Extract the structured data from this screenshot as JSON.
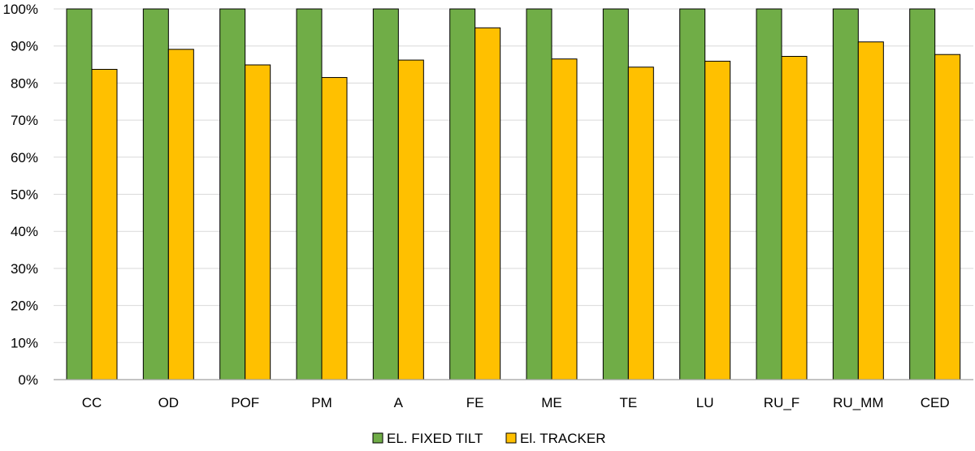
{
  "chart_data": {
    "type": "bar",
    "title": "",
    "xlabel": "",
    "ylabel": "",
    "categories": [
      "CC",
      "OD",
      "POF",
      "PM",
      "A",
      "FE",
      "ME",
      "TE",
      "LU",
      "RU_F",
      "RU_MM",
      "CED"
    ],
    "series": [
      {
        "name": "EL. FIXED TILT",
        "color": "#70ad47",
        "values": [
          100,
          100,
          100,
          100,
          100,
          100,
          100,
          100,
          100,
          100,
          100,
          100
        ]
      },
      {
        "name": "El. TRACKER",
        "color": "#ffc000",
        "values": [
          83.7,
          89.1,
          84.9,
          81.5,
          86.2,
          94.9,
          86.5,
          84.3,
          85.9,
          87.2,
          91.1,
          87.7
        ]
      }
    ],
    "ylim": [
      0,
      100
    ],
    "yticks": [
      "0%",
      "10%",
      "20%",
      "30%",
      "40%",
      "50%",
      "60%",
      "70%",
      "80%",
      "90%",
      "100%"
    ],
    "grid": true,
    "legend_position": "bottom-center"
  }
}
